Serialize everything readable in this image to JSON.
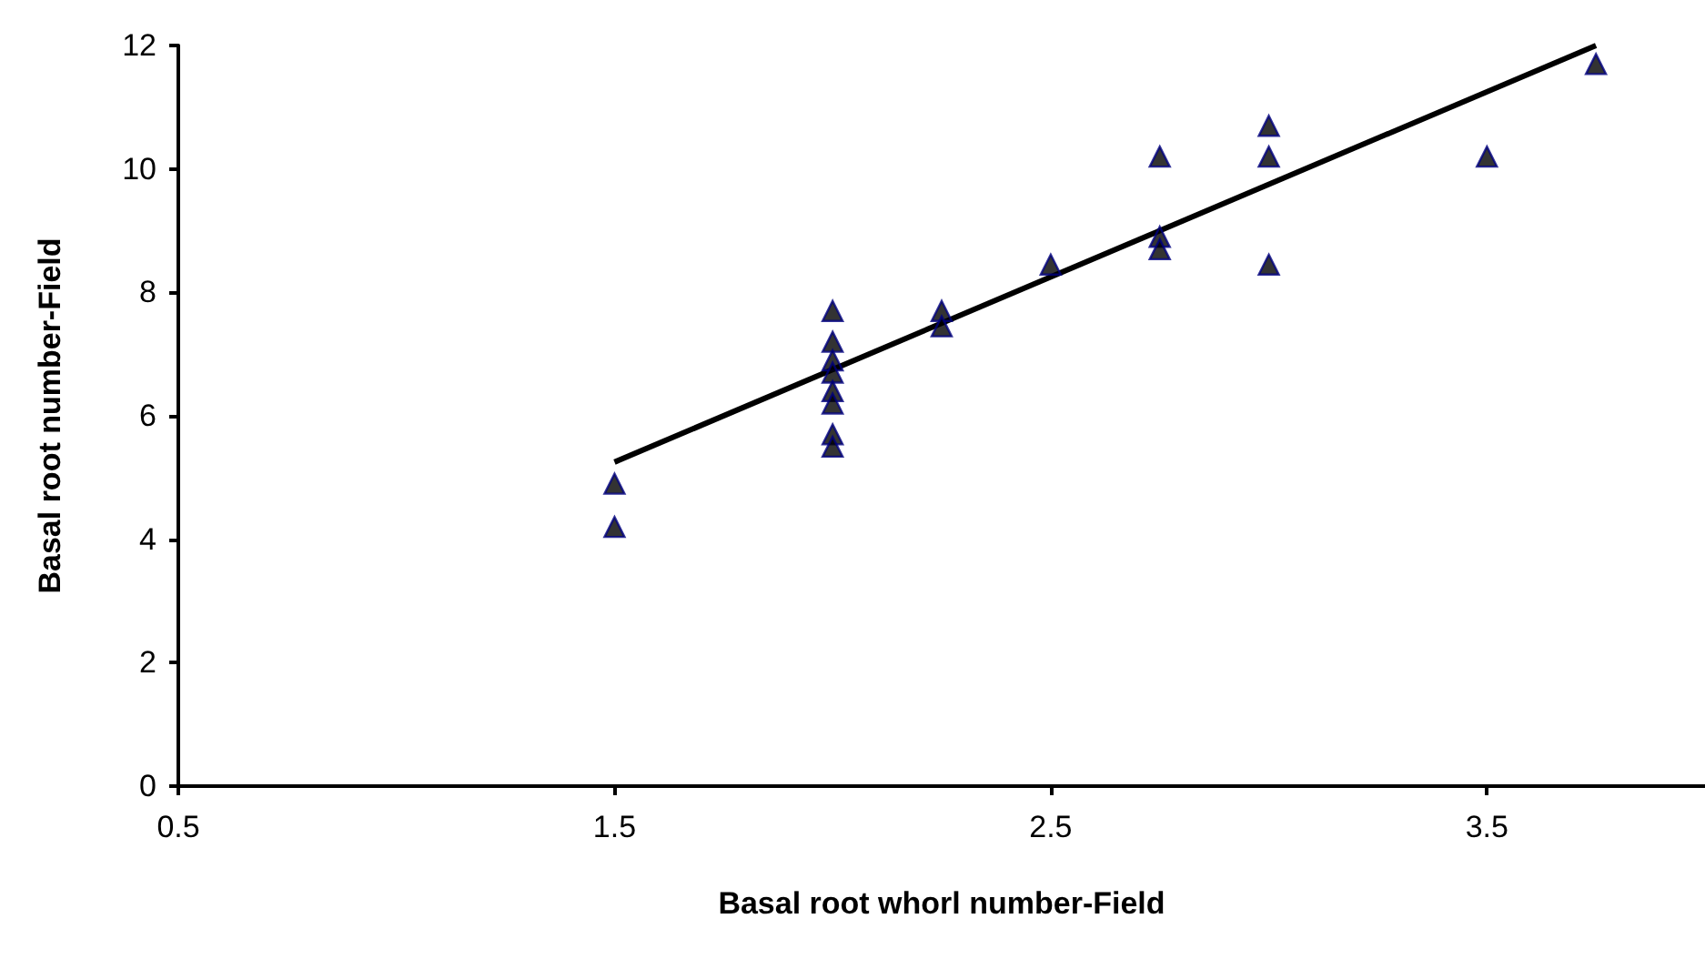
{
  "chart_data": {
    "type": "scatter",
    "xlabel": "Basal root whorl number-Field",
    "ylabel": "Basal root number-Field",
    "xlim": [
      0.5,
      4
    ],
    "xticks": [
      0.5,
      1.5,
      2.5,
      3.5
    ],
    "ylim": [
      0,
      12
    ],
    "yticks": [
      0,
      2,
      4,
      6,
      8,
      10,
      12
    ],
    "grid": false,
    "marker": "triangle",
    "series": [
      {
        "color": "#000080",
        "x": [
          1.5,
          1.5,
          2,
          2,
          2,
          2,
          2,
          2,
          2,
          2,
          2.25,
          2.25,
          2.5,
          2.75,
          2.75,
          2.75,
          3,
          3,
          3,
          3.5,
          3.75
        ],
        "values": [
          4.9,
          4.2,
          7.7,
          7.2,
          6.9,
          6.7,
          6.4,
          6.2,
          5.7,
          5.5,
          7.7,
          7.45,
          8.45,
          10.2,
          8.9,
          8.7,
          10.7,
          10.2,
          8.45,
          10.2,
          11.7
        ]
      },
      {
        "type": "line",
        "color": "#000000",
        "marker": "none",
        "line_style": "solid",
        "x": [
          1.5,
          3.75
        ],
        "values": [
          5.25,
          12
        ]
      }
    ]
  }
}
